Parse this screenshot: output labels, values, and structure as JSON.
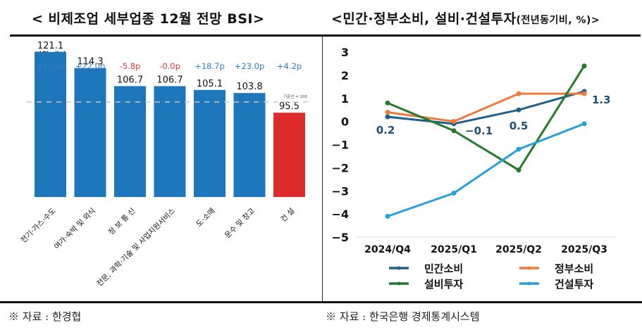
{
  "left_title": "< 비제조업 세부업종 12월 전망 BSI>",
  "right_title_main": "<민간·정부소비, 설비·건설투자",
  "right_title_small": "(전년동기비, %)>",
  "footnote_left": "※ 자료 : 한경협",
  "footnote_right": "※ 자료 : 한국은행 경제통계시스템",
  "chart_data": [
    {
      "type": "bar",
      "title": "< 비제조업 세부업종 12월 전망 BSI>",
      "change_header": "전월 대비",
      "reference_label": "기준선 = 100",
      "reference_value": 100,
      "categories": [
        "전기·가스·수도",
        "여가·숙박 및 외식",
        "정 보 통 신",
        "전문, 과학·기술 및 사업지원서비스",
        "도·소매",
        "운수 및 창고",
        "건 설"
      ],
      "values": [
        121.1,
        114.3,
        106.7,
        106.7,
        105.1,
        103.8,
        95.5
      ],
      "value_labels": [
        "121.1",
        "114.3",
        "106.7",
        "106.7",
        "105.1",
        "103.8",
        "95.5"
      ],
      "changes": [
        "+15.8p",
        "+22.0p",
        "-5.8p",
        "-0.0p",
        "+18.7p",
        "+23.0p",
        "+4.2p"
      ],
      "change_colors": [
        "#2e7fc0",
        "#2e7fc0",
        "#e03a3a",
        "#e03a3a",
        "#2e7fc0",
        "#2e7fc0",
        "#2e7fc0"
      ],
      "bar_colors": [
        "#1f77bb",
        "#1f77bb",
        "#1f77bb",
        "#1f77bb",
        "#1f77bb",
        "#1f77bb",
        "#dd2a2a"
      ],
      "ylim": [
        60,
        125
      ]
    },
    {
      "type": "line",
      "title": "<민간·정부소비, 설비·건설투자(전년동기비, %)>",
      "categories": [
        "2024/Q4",
        "2025/Q1",
        "2025/Q2",
        "2025/Q3"
      ],
      "ylim": [
        -5,
        3
      ],
      "yticks": [
        "3",
        "2",
        "1",
        "0",
        "−1",
        "−2",
        "−3",
        "−4",
        "−5"
      ],
      "ytick_values": [
        3,
        2,
        1,
        0,
        -1,
        -2,
        -3,
        -4,
        -5
      ],
      "series": [
        {
          "name": "민간소비",
          "color": "#1f5f8b",
          "values": [
            0.2,
            -0.1,
            0.5,
            1.3
          ],
          "labels": [
            "0.2",
            "−0.1",
            "0.5",
            "1.3"
          ]
        },
        {
          "name": "정부소비",
          "color": "#f07a3a",
          "values": [
            0.4,
            0.0,
            1.2,
            1.2
          ]
        },
        {
          "name": "설비투자",
          "color": "#237a2a",
          "values": [
            0.8,
            -0.4,
            -2.1,
            2.4
          ]
        },
        {
          "name": "건설투자",
          "color": "#26a0dc",
          "values": [
            -4.1,
            -3.1,
            -1.2,
            -0.1
          ]
        }
      ],
      "legend": "bottom",
      "grid": false
    }
  ]
}
